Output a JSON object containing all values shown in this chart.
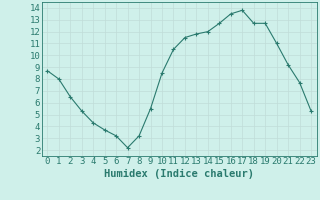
{
  "x": [
    0,
    1,
    2,
    3,
    4,
    5,
    6,
    7,
    8,
    9,
    10,
    11,
    12,
    13,
    14,
    15,
    16,
    17,
    18,
    19,
    20,
    21,
    22,
    23
  ],
  "y": [
    8.7,
    8.0,
    6.5,
    5.3,
    4.3,
    3.7,
    3.2,
    2.2,
    3.2,
    5.5,
    8.5,
    10.5,
    11.5,
    11.8,
    12.0,
    12.7,
    13.5,
    13.8,
    12.7,
    12.7,
    11.0,
    9.2,
    7.7,
    5.3
  ],
  "xlim": [
    -0.5,
    23.5
  ],
  "ylim": [
    1.5,
    14.5
  ],
  "xticks": [
    0,
    1,
    2,
    3,
    4,
    5,
    6,
    7,
    8,
    9,
    10,
    11,
    12,
    13,
    14,
    15,
    16,
    17,
    18,
    19,
    20,
    21,
    22,
    23
  ],
  "yticks": [
    2,
    3,
    4,
    5,
    6,
    7,
    8,
    9,
    10,
    11,
    12,
    13,
    14
  ],
  "xlabel": "Humidex (Indice chaleur)",
  "line_color": "#2a7a6e",
  "marker": "s",
  "marker_size": 2,
  "bg_color": "#cff0ea",
  "grid_major_color": "#c0ddd8",
  "grid_minor_color": "#d8eeeb",
  "tick_fontsize": 6.5,
  "xlabel_fontsize": 7.5
}
